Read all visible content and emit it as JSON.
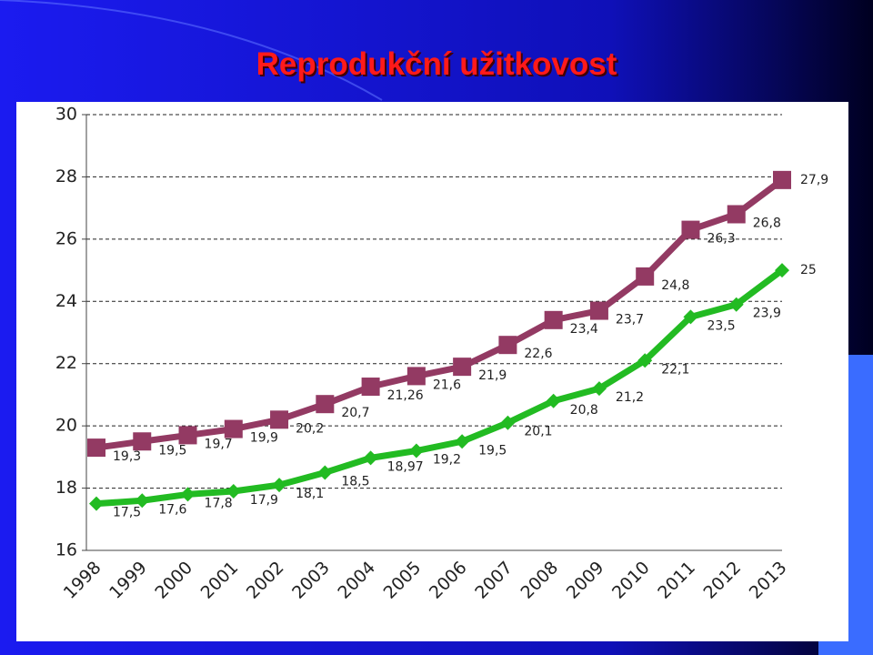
{
  "chart_data": {
    "type": "line",
    "title": "Reprodukční užitkovost",
    "categories": [
      "1998",
      "1999",
      "2000",
      "2001",
      "2002",
      "2003",
      "2004",
      "2005",
      "2006",
      "2007",
      "2008",
      "2009",
      "2010",
      "2011",
      "2012",
      "2013"
    ],
    "series": [
      {
        "color": "#933a63",
        "marker": "square",
        "values": [
          19.3,
          19.5,
          19.7,
          19.9,
          20.2,
          20.7,
          21.26,
          21.6,
          21.9,
          22.6,
          23.4,
          23.7,
          24.8,
          26.3,
          26.8,
          27.9
        ],
        "value_labels": [
          "19,3",
          "19,5",
          "19,7",
          "19,9",
          "20,2",
          "20,7",
          "21,26",
          "21,6",
          "21,9",
          "22,6",
          "23,4",
          "23,7",
          "24,8",
          "26,3",
          "26,8",
          "27,9"
        ]
      },
      {
        "color": "#22bb22",
        "marker": "diamond",
        "values": [
          17.5,
          17.6,
          17.8,
          17.9,
          18.1,
          18.5,
          18.97,
          19.2,
          19.5,
          20.1,
          20.8,
          21.2,
          22.1,
          23.5,
          23.9,
          25
        ],
        "value_labels": [
          "17,5",
          "17,6",
          "17,8",
          "17,9",
          "18,1",
          "18,5",
          "18,97",
          "19,2",
          "19,5",
          "20,1",
          "20,8",
          "21,2",
          "22,1",
          "23,5",
          "23,9",
          "25"
        ]
      }
    ],
    "ylim": [
      16,
      30
    ],
    "yticks": [
      16,
      18,
      20,
      22,
      24,
      26,
      28,
      30
    ],
    "grid": true
  }
}
